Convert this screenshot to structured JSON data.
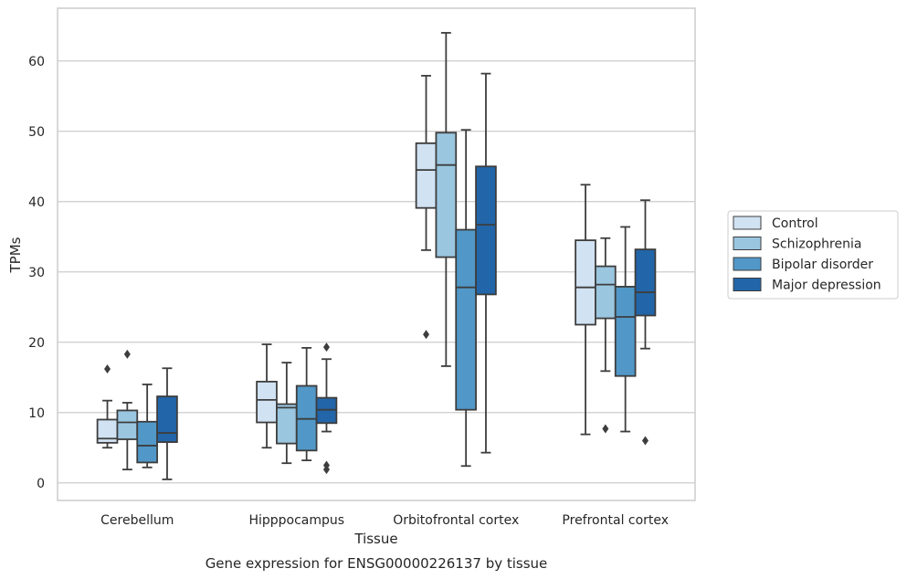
{
  "chart_data": {
    "type": "box",
    "caption": "Gene expression for ENSG00000226137 by tissue",
    "xlabel": "Tissue",
    "ylabel": "TPMs",
    "ylim": [
      -2.5,
      67.5
    ],
    "yticks": [
      0,
      10,
      20,
      30,
      40,
      50,
      60
    ],
    "grid": true,
    "legend_position": "right",
    "categories": [
      "Cerebellum",
      "Hipppocampus",
      "Orbitofrontal cortex",
      "Prefrontal cortex"
    ],
    "series": [
      {
        "name": "Control",
        "color": "#d1e2f2",
        "boxes": [
          {
            "whislo": 5.0,
            "q1": 5.7,
            "med": 6.3,
            "q3": 9.0,
            "whishi": 11.7,
            "fliers": [
              16.2
            ]
          },
          {
            "whislo": 5.0,
            "q1": 8.6,
            "med": 11.8,
            "q3": 14.4,
            "whishi": 19.7,
            "fliers": []
          },
          {
            "whislo": 33.1,
            "q1": 39.1,
            "med": 44.5,
            "q3": 48.3,
            "whishi": 57.9,
            "fliers": [
              21.1
            ]
          },
          {
            "whislo": 6.9,
            "q1": 22.5,
            "med": 27.8,
            "q3": 34.5,
            "whishi": 42.4,
            "fliers": []
          }
        ]
      },
      {
        "name": "Schizophrenia",
        "color": "#9ac6e0",
        "boxes": [
          {
            "whislo": 1.9,
            "q1": 6.2,
            "med": 8.6,
            "q3": 10.3,
            "whishi": 11.4,
            "fliers": [
              18.3
            ]
          },
          {
            "whislo": 2.8,
            "q1": 5.6,
            "med": 10.7,
            "q3": 11.2,
            "whishi": 17.1,
            "fliers": []
          },
          {
            "whislo": 16.6,
            "q1": 32.1,
            "med": 45.2,
            "q3": 49.8,
            "whishi": 64.0,
            "fliers": []
          },
          {
            "whislo": 15.9,
            "q1": 23.4,
            "med": 28.2,
            "q3": 30.8,
            "whishi": 34.8,
            "fliers": [
              7.7
            ]
          }
        ]
      },
      {
        "name": "Bipolar disorder",
        "color": "#5198c8",
        "boxes": [
          {
            "whislo": 2.2,
            "q1": 2.9,
            "med": 5.3,
            "q3": 8.7,
            "whishi": 14.0,
            "fliers": []
          },
          {
            "whislo": 3.2,
            "q1": 4.6,
            "med": 9.1,
            "q3": 13.8,
            "whishi": 19.2,
            "fliers": []
          },
          {
            "whislo": 2.4,
            "q1": 10.4,
            "med": 27.8,
            "q3": 36.0,
            "whishi": 50.2,
            "fliers": []
          },
          {
            "whislo": 7.3,
            "q1": 15.2,
            "med": 23.6,
            "q3": 27.9,
            "whishi": 36.4,
            "fliers": []
          }
        ]
      },
      {
        "name": "Major depression",
        "color": "#2265a8",
        "boxes": [
          {
            "whislo": 0.5,
            "q1": 5.8,
            "med": 7.1,
            "q3": 12.3,
            "whishi": 16.3,
            "fliers": []
          },
          {
            "whislo": 7.3,
            "q1": 8.5,
            "med": 10.4,
            "q3": 12.1,
            "whishi": 17.6,
            "fliers": [
              19.3,
              2.5,
              1.9
            ]
          },
          {
            "whislo": 4.3,
            "q1": 26.8,
            "med": 36.7,
            "q3": 45.0,
            "whishi": 58.2,
            "fliers": []
          },
          {
            "whislo": 19.1,
            "q1": 23.8,
            "med": 27.1,
            "q3": 33.2,
            "whishi": 40.2,
            "fliers": [
              6.0
            ]
          }
        ]
      }
    ]
  }
}
